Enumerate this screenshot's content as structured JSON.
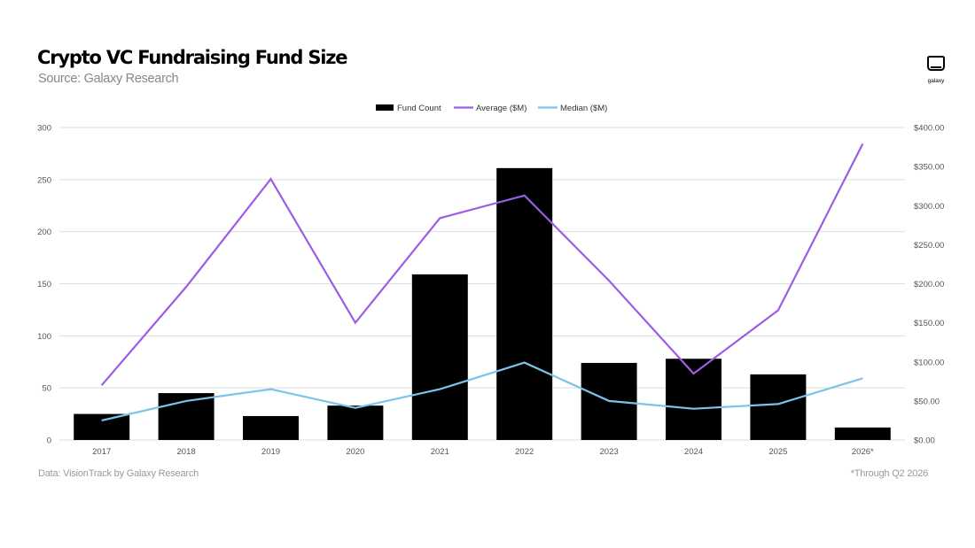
{
  "header": {
    "title": "Crypto VC Fundraising Fund Size",
    "subtitle": "Source: Galaxy Research",
    "logo_text": "galaxy"
  },
  "footer": {
    "left": "Data: VisionTrack by Galaxy Research",
    "right": "*Through Q2 2026"
  },
  "colors": {
    "bars": "#000000",
    "average": "#9b5de5",
    "median": "#7cc3ea",
    "grid": "#dddddd",
    "tick_text": "#555555"
  },
  "chart_data": {
    "type": "bar",
    "title": "Crypto VC Fundraising Fund Size",
    "categories": [
      "2017",
      "2018",
      "2019",
      "2020",
      "2021",
      "2022",
      "2023",
      "2024",
      "2025",
      "2026*"
    ],
    "series": [
      {
        "name": "Fund Count",
        "type": "bar",
        "axis": "left",
        "values": [
          25,
          45,
          23,
          33,
          159,
          261,
          74,
          78,
          63,
          12
        ]
      },
      {
        "name": "Average ($M)",
        "type": "line",
        "axis": "right",
        "values": [
          70,
          196,
          334,
          150,
          284,
          313,
          204,
          85,
          166,
          379
        ]
      },
      {
        "name": "Median ($M)",
        "type": "line",
        "axis": "right",
        "values": [
          25,
          50,
          65,
          41,
          65,
          99,
          50,
          40,
          46,
          79
        ]
      }
    ],
    "y_left": {
      "min": 0,
      "max": 300,
      "ticks": [
        "0",
        "50",
        "100",
        "150",
        "200",
        "250",
        "300"
      ]
    },
    "y_right": {
      "min": 0,
      "max": 400,
      "ticks": [
        "$0.00",
        "$50.00",
        "$100.00",
        "$150.00",
        "$200.00",
        "$250.00",
        "$300.00",
        "$350.00",
        "$400.00"
      ]
    },
    "grid": true,
    "legend_position": "top-center"
  }
}
